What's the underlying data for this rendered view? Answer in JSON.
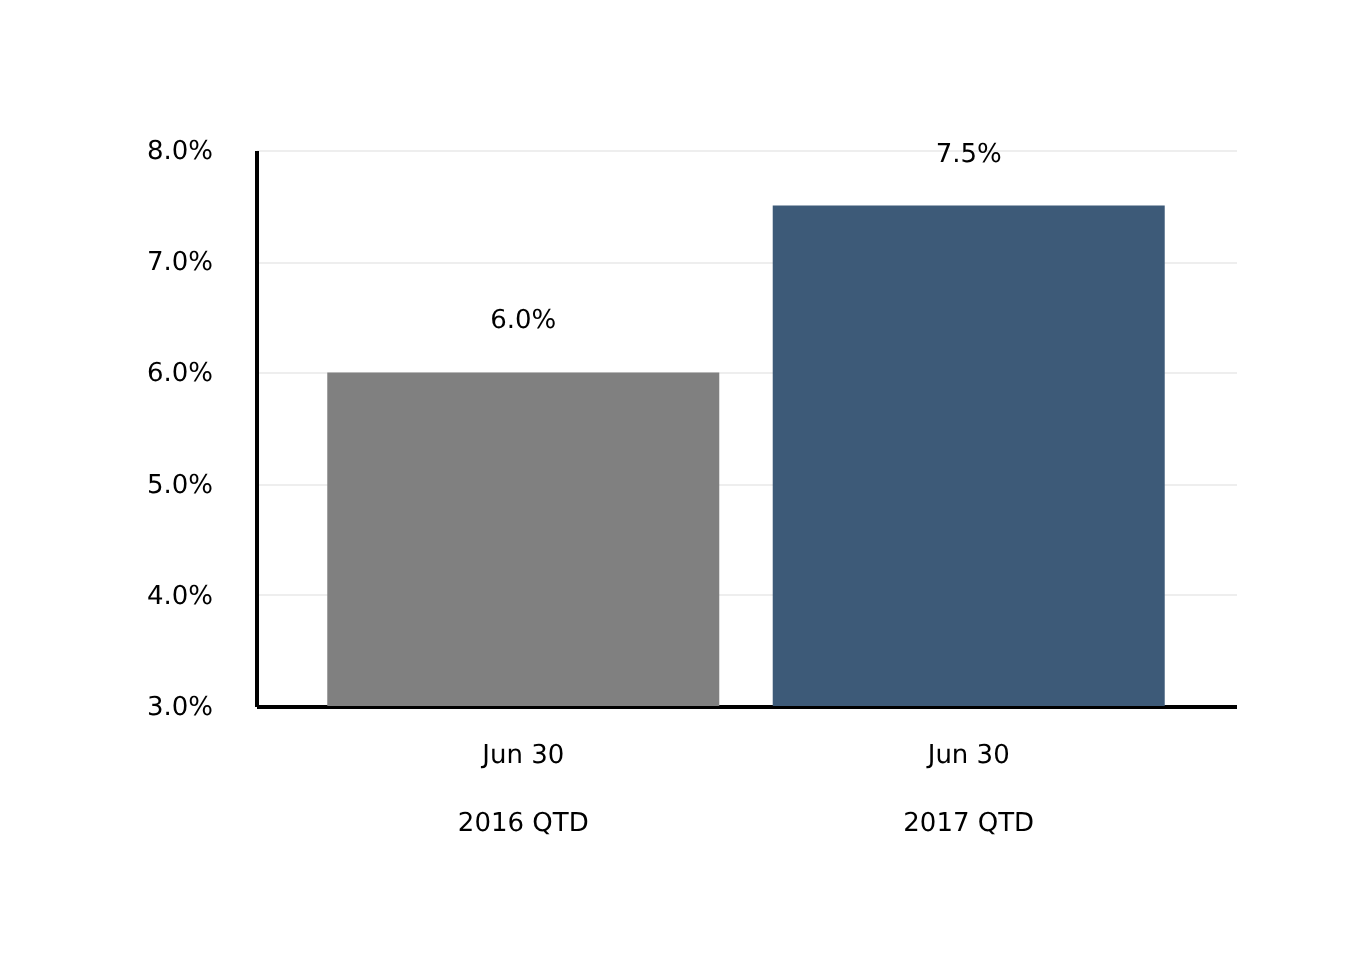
{
  "chart_data": {
    "type": "bar",
    "categories": [
      "Jun 30\n2016 QTD",
      "Jun 30\n2017 QTD"
    ],
    "values": [
      6.0,
      7.5
    ],
    "colors": [
      "#808080",
      "#3d5a78"
    ],
    "value_labels": [
      "6.0%",
      "7.5%"
    ],
    "ylim": [
      3,
      8
    ],
    "yticks": [
      {
        "value": 3,
        "label": "3.0%"
      },
      {
        "value": 4,
        "label": "4.0%"
      },
      {
        "value": 5,
        "label": "5.0%"
      },
      {
        "value": 6,
        "label": "6.0%"
      },
      {
        "value": 7,
        "label": "7.0%"
      },
      {
        "value": 8,
        "label": "8.0%"
      }
    ],
    "grid": "y"
  }
}
